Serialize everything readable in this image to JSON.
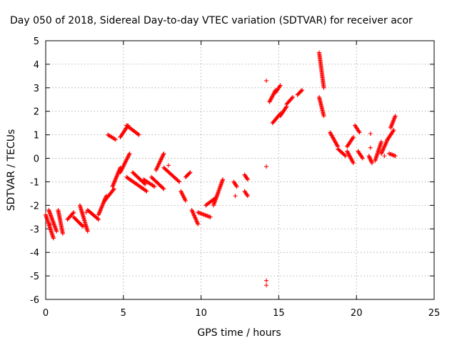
{
  "chart_data": {
    "type": "scatter",
    "title": "Day 050 of 2018, Sidereal Day-to-day VTEC variation (SDTVAR) for receiver acor",
    "xlabel": "GPS time / hours",
    "ylabel": "SDTVAR / TECUs",
    "xlim": [
      0,
      25
    ],
    "ylim": [
      -6,
      5
    ],
    "xticks": [
      "0",
      "5",
      "10",
      "15",
      "20",
      "25"
    ],
    "yticks": [
      "-6",
      "-5",
      "-4",
      "-3",
      "-2",
      "-1",
      "0",
      "1",
      "2",
      "3",
      "4",
      "5"
    ],
    "grid": true,
    "marker": "plus",
    "color": "#ff0000",
    "segments": [
      {
        "x0": 0.0,
        "x1": 0.5,
        "y0": -2.4,
        "y1": -3.4
      },
      {
        "x0": 0.2,
        "x1": 0.7,
        "y0": -2.2,
        "y1": -3.1
      },
      {
        "x0": 0.8,
        "x1": 1.1,
        "y0": -2.2,
        "y1": -3.2
      },
      {
        "x0": 1.4,
        "x1": 1.8,
        "y0": -2.6,
        "y1": -2.3
      },
      {
        "x0": 1.8,
        "x1": 2.4,
        "y0": -2.5,
        "y1": -2.9
      },
      {
        "x0": 2.2,
        "x1": 2.7,
        "y0": -2.0,
        "y1": -3.1
      },
      {
        "x0": 2.7,
        "x1": 3.4,
        "y0": -2.2,
        "y1": -2.6
      },
      {
        "x0": 3.4,
        "x1": 3.9,
        "y0": -2.4,
        "y1": -1.6
      },
      {
        "x0": 3.8,
        "x1": 4.4,
        "y0": -1.8,
        "y1": -1.3
      },
      {
        "x0": 4.0,
        "x1": 4.5,
        "y0": 1.0,
        "y1": 0.8
      },
      {
        "x0": 4.3,
        "x1": 4.8,
        "y0": -1.2,
        "y1": -0.4
      },
      {
        "x0": 4.8,
        "x1": 5.3,
        "y0": 0.9,
        "y1": 1.4
      },
      {
        "x0": 5.2,
        "x1": 6.0,
        "y0": 1.4,
        "y1": 1.0
      },
      {
        "x0": 4.8,
        "x1": 5.4,
        "y0": -0.6,
        "y1": 0.2
      },
      {
        "x0": 5.2,
        "x1": 6.5,
        "y0": -0.8,
        "y1": -1.4
      },
      {
        "x0": 5.6,
        "x1": 6.4,
        "y0": -0.6,
        "y1": -1.1
      },
      {
        "x0": 6.3,
        "x1": 7.0,
        "y0": -0.9,
        "y1": -1.2
      },
      {
        "x0": 6.8,
        "x1": 7.6,
        "y0": -0.8,
        "y1": -1.3
      },
      {
        "x0": 7.1,
        "x1": 7.6,
        "y0": -0.5,
        "y1": 0.2
      },
      {
        "x0": 7.6,
        "x1": 8.6,
        "y0": -0.4,
        "y1": -1.0
      },
      {
        "x0": 8.7,
        "x1": 9.0,
        "y0": -1.4,
        "y1": -1.8
      },
      {
        "x0": 9.0,
        "x1": 9.3,
        "y0": -0.8,
        "y1": -0.6
      },
      {
        "x0": 9.4,
        "x1": 9.8,
        "y0": -2.2,
        "y1": -2.8
      },
      {
        "x0": 9.8,
        "x1": 10.6,
        "y0": -2.3,
        "y1": -2.5
      },
      {
        "x0": 10.3,
        "x1": 10.9,
        "y0": -2.0,
        "y1": -1.7
      },
      {
        "x0": 10.8,
        "x1": 11.4,
        "y0": -2.0,
        "y1": -0.9
      },
      {
        "x0": 12.1,
        "x1": 12.3,
        "y0": -1.0,
        "y1": -1.2
      },
      {
        "x0": 12.8,
        "x1": 13.0,
        "y0": -0.7,
        "y1": -0.9
      },
      {
        "x0": 12.8,
        "x1": 13.0,
        "y0": -1.4,
        "y1": -1.6
      },
      {
        "x0": 14.4,
        "x1": 14.8,
        "y0": 2.4,
        "y1": 2.9
      },
      {
        "x0": 14.8,
        "x1": 15.1,
        "y0": 2.8,
        "y1": 3.1
      },
      {
        "x0": 14.6,
        "x1": 15.1,
        "y0": 1.5,
        "y1": 1.9
      },
      {
        "x0": 15.1,
        "x1": 15.5,
        "y0": 1.8,
        "y1": 2.2
      },
      {
        "x0": 15.5,
        "x1": 15.9,
        "y0": 2.3,
        "y1": 2.6
      },
      {
        "x0": 16.2,
        "x1": 16.5,
        "y0": 2.7,
        "y1": 2.9
      },
      {
        "x0": 17.6,
        "x1": 17.9,
        "y0": 4.5,
        "y1": 3.0
      },
      {
        "x0": 17.6,
        "x1": 17.9,
        "y0": 2.6,
        "y1": 1.8
      },
      {
        "x0": 18.3,
        "x1": 18.8,
        "y0": 1.1,
        "y1": 0.5
      },
      {
        "x0": 18.8,
        "x1": 19.3,
        "y0": 0.4,
        "y1": 0.1
      },
      {
        "x0": 19.4,
        "x1": 19.8,
        "y0": 0.5,
        "y1": 0.9
      },
      {
        "x0": 19.4,
        "x1": 19.8,
        "y0": 0.3,
        "y1": -0.2
      },
      {
        "x0": 19.9,
        "x1": 20.2,
        "y0": 1.4,
        "y1": 1.1
      },
      {
        "x0": 20.1,
        "x1": 20.4,
        "y0": 0.3,
        "y1": 0.0
      },
      {
        "x0": 20.8,
        "x1": 21.0,
        "y0": 0.1,
        "y1": -0.2
      },
      {
        "x0": 21.2,
        "x1": 21.6,
        "y0": -0.1,
        "y1": 0.7
      },
      {
        "x0": 21.6,
        "x1": 22.0,
        "y0": 0.2,
        "y1": 0.8
      },
      {
        "x0": 22.0,
        "x1": 22.4,
        "y0": 0.8,
        "y1": 1.2
      },
      {
        "x0": 22.2,
        "x1": 22.5,
        "y0": 1.3,
        "y1": 1.8
      },
      {
        "x0": 22.1,
        "x1": 22.5,
        "y0": 0.2,
        "y1": 0.1
      }
    ],
    "isolated_points": [
      {
        "x": 0.3,
        "y": -2.8
      },
      {
        "x": 2.6,
        "y": -2.3
      },
      {
        "x": 7.9,
        "y": -0.3
      },
      {
        "x": 12.2,
        "y": -1.6
      },
      {
        "x": 14.2,
        "y": 3.3
      },
      {
        "x": 14.2,
        "y": -0.35
      },
      {
        "x": 14.2,
        "y": -5.2
      },
      {
        "x": 14.2,
        "y": -5.4
      },
      {
        "x": 20.9,
        "y": 1.05
      },
      {
        "x": 20.9,
        "y": 0.45
      },
      {
        "x": 21.8,
        "y": 0.1
      }
    ]
  }
}
